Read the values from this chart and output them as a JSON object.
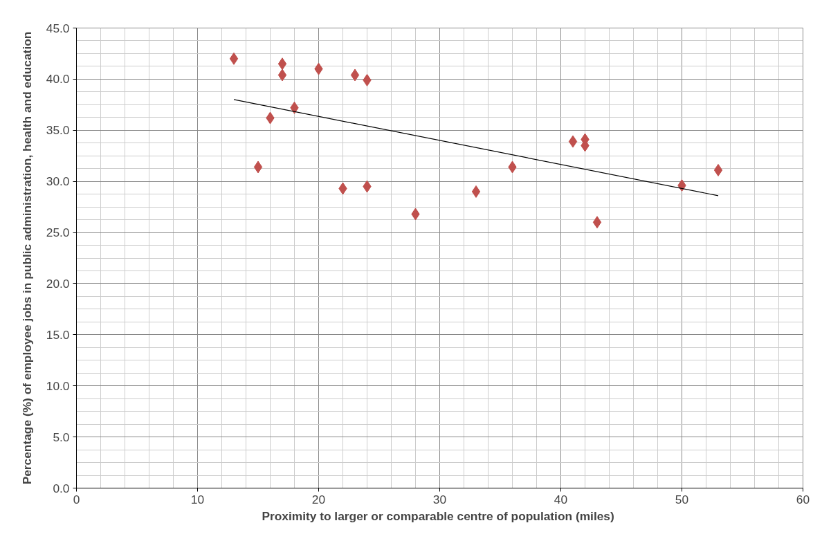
{
  "chart_data": {
    "type": "scatter",
    "xlabel": "Proximity to larger or comparable centre of population  (miles)",
    "ylabel": "Percentage (%) of employee jobs in public administration, health and education",
    "xlim": [
      0,
      60
    ],
    "xticks": [
      0,
      10,
      20,
      30,
      40,
      50,
      60
    ],
    "ylim": [
      0,
      45
    ],
    "yticks": [
      {
        "value": 0,
        "label": "0.0"
      },
      {
        "value": 5,
        "label": "5.0"
      },
      {
        "value": 10,
        "label": "10.0"
      },
      {
        "value": 15,
        "label": "15.0"
      },
      {
        "value": 20,
        "label": "20.0"
      },
      {
        "value": 25,
        "label": "25.0"
      },
      {
        "value": 30,
        "label": "30.0"
      },
      {
        "value": 35,
        "label": "35.0"
      },
      {
        "value": 40,
        "label": "40.0"
      },
      {
        "value": 45,
        "label": "45.0"
      }
    ],
    "grid": true,
    "series": [
      {
        "marker": "diamond",
        "color": "#c0504d",
        "x": [
          13,
          15,
          16,
          17,
          17,
          18,
          20,
          22,
          23,
          24,
          24,
          28,
          33,
          36,
          41,
          42,
          42,
          43,
          50,
          53
        ],
        "values": [
          42.0,
          31.4,
          36.2,
          41.5,
          40.4,
          37.2,
          41.0,
          29.3,
          40.4,
          39.9,
          29.5,
          26.8,
          29.0,
          31.4,
          33.9,
          34.1,
          33.5,
          26.0,
          29.6,
          31.1
        ]
      },
      {
        "type": "line",
        "color": "#000000",
        "x": [
          13,
          53
        ],
        "values": [
          38.0,
          28.6
        ]
      }
    ]
  }
}
